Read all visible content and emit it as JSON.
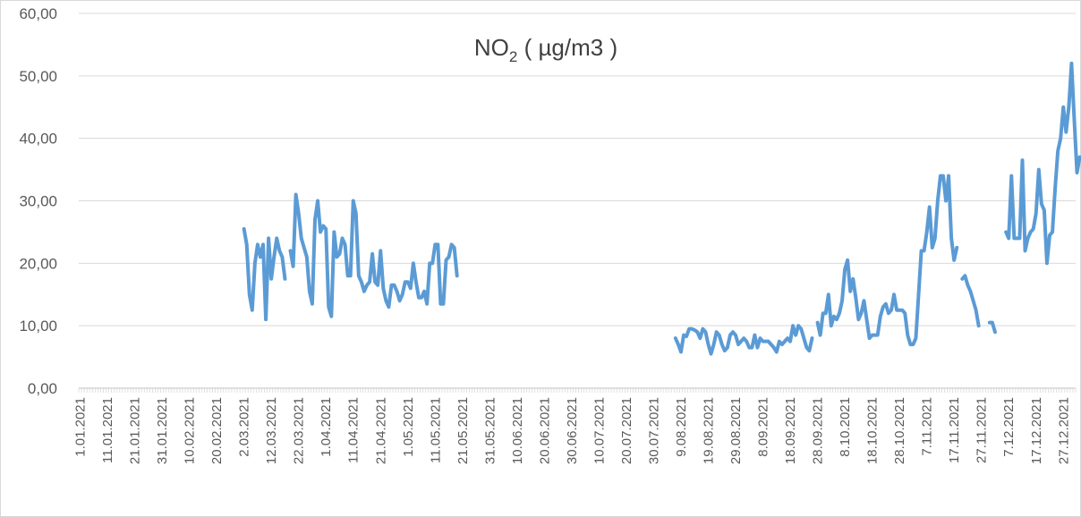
{
  "chart_data": {
    "type": "line",
    "title": "NO",
    "title_subscript": "2",
    "title_suffix": " ( µg/m3 )",
    "xlabel": "",
    "ylabel": "",
    "ylim": [
      0,
      60
    ],
    "y_ticks": [
      "0,00",
      "10,00",
      "20,00",
      "30,00",
      "40,00",
      "50,00",
      "60,00"
    ],
    "x_ticks": [
      "1.01.2021",
      "11.01.2021",
      "21.01.2021",
      "31.01.2021",
      "10.02.2021",
      "20.02.2021",
      "2.03.2021",
      "12.03.2021",
      "22.03.2021",
      "1.04.2021",
      "11.04.2021",
      "21.04.2021",
      "1.05.2021",
      "11.05.2021",
      "21.05.2021",
      "31.05.2021",
      "10.06.2021",
      "20.06.2021",
      "30.06.2021",
      "10.07.2021",
      "20.07.2021",
      "30.07.2021",
      "9.08.2021",
      "19.08.2021",
      "29.08.2021",
      "8.09.2021",
      "18.09.2021",
      "28.09.2021",
      "8.10.2021",
      "18.10.2021",
      "28.10.2021",
      "7.11.2021",
      "17.11.2021",
      "27.11.2021",
      "7.12.2021",
      "17.12.2021",
      "27.12.2021"
    ],
    "grid": true,
    "legend": "none",
    "line_color": "#5b9bd5",
    "series": [
      {
        "segments": [
          [
            [
              61,
              25.5
            ],
            [
              62,
              23
            ],
            [
              63,
              15
            ],
            [
              64,
              12.5
            ],
            [
              65,
              20
            ],
            [
              66,
              23
            ],
            [
              67,
              21
            ],
            [
              68,
              23
            ],
            [
              69,
              11
            ],
            [
              70,
              24
            ],
            [
              71,
              17.5
            ],
            [
              72,
              21
            ],
            [
              73,
              24
            ],
            [
              74,
              22
            ],
            [
              75,
              21
            ],
            [
              76,
              17.5
            ]
          ],
          [
            [
              78,
              22
            ],
            [
              79,
              19.5
            ],
            [
              80,
              31
            ],
            [
              81,
              28
            ],
            [
              82,
              24
            ],
            [
              83,
              22.5
            ],
            [
              84,
              21
            ],
            [
              85,
              15.5
            ],
            [
              86,
              13.5
            ],
            [
              87,
              27
            ],
            [
              88,
              30
            ],
            [
              89,
              25
            ],
            [
              90,
              26
            ],
            [
              91,
              25.5
            ],
            [
              92,
              13
            ],
            [
              93,
              11.5
            ],
            [
              94,
              25
            ],
            [
              95,
              21
            ],
            [
              96,
              21.5
            ],
            [
              97,
              24
            ],
            [
              98,
              23
            ],
            [
              99,
              18
            ],
            [
              100,
              18
            ],
            [
              101,
              30
            ],
            [
              102,
              28
            ],
            [
              103,
              18
            ],
            [
              104,
              17
            ],
            [
              105,
              15.5
            ],
            [
              106,
              16.5
            ],
            [
              107,
              17
            ],
            [
              108,
              21.5
            ],
            [
              109,
              17
            ],
            [
              110,
              16.5
            ],
            [
              111,
              22
            ],
            [
              112,
              16
            ],
            [
              113,
              14
            ],
            [
              114,
              13
            ],
            [
              115,
              16.5
            ],
            [
              116,
              16.5
            ],
            [
              117,
              15.5
            ],
            [
              118,
              14
            ],
            [
              119,
              15
            ],
            [
              120,
              17
            ],
            [
              121,
              17
            ],
            [
              122,
              16
            ],
            [
              123,
              20
            ],
            [
              124,
              17
            ],
            [
              125,
              14.5
            ],
            [
              126,
              14.5
            ],
            [
              127,
              15.5
            ],
            [
              128,
              13.5
            ],
            [
              129,
              20
            ],
            [
              130,
              20
            ],
            [
              131,
              23
            ],
            [
              132,
              23
            ],
            [
              133,
              13.5
            ],
            [
              134,
              13.5
            ],
            [
              135,
              20.5
            ],
            [
              136,
              21
            ],
            [
              137,
              23
            ],
            [
              138,
              22.5
            ],
            [
              139,
              18
            ]
          ],
          [
            [
              219,
              8
            ],
            [
              220,
              7
            ],
            [
              221,
              5.8
            ],
            [
              222,
              8.5
            ],
            [
              223,
              8.3
            ],
            [
              224,
              9.5
            ],
            [
              225,
              9.5
            ],
            [
              226,
              9.3
            ],
            [
              227,
              9
            ],
            [
              228,
              8
            ],
            [
              229,
              9.5
            ],
            [
              230,
              9
            ],
            [
              231,
              7
            ],
            [
              232,
              5.5
            ],
            [
              233,
              7
            ],
            [
              234,
              9
            ],
            [
              235,
              8.5
            ],
            [
              236,
              7
            ],
            [
              237,
              6
            ],
            [
              238,
              6.5
            ],
            [
              239,
              8.5
            ],
            [
              240,
              9
            ],
            [
              241,
              8.5
            ],
            [
              242,
              7
            ],
            [
              243,
              7.5
            ],
            [
              244,
              8
            ],
            [
              245,
              7.5
            ],
            [
              246,
              6.5
            ],
            [
              247,
              6.5
            ],
            [
              248,
              8.5
            ],
            [
              249,
              6.5
            ],
            [
              250,
              8
            ],
            [
              251,
              7.5
            ],
            [
              252,
              7.5
            ],
            [
              253,
              7.5
            ],
            [
              254,
              7
            ],
            [
              255,
              6.5
            ],
            [
              256,
              5.8
            ],
            [
              257,
              7.5
            ],
            [
              258,
              7
            ],
            [
              259,
              7.5
            ],
            [
              260,
              8
            ],
            [
              261,
              7.5
            ],
            [
              262,
              10
            ],
            [
              263,
              8.5
            ],
            [
              264,
              10
            ],
            [
              265,
              9.5
            ],
            [
              266,
              8
            ],
            [
              267,
              6.5
            ],
            [
              268,
              6
            ],
            [
              269,
              8
            ]
          ],
          [
            [
              271,
              10.5
            ],
            [
              272,
              8.5
            ],
            [
              273,
              12
            ],
            [
              274,
              12
            ],
            [
              275,
              15
            ],
            [
              276,
              10
            ],
            [
              277,
              11.5
            ],
            [
              278,
              11
            ],
            [
              279,
              12
            ],
            [
              280,
              14
            ],
            [
              281,
              19
            ],
            [
              282,
              20.5
            ],
            [
              283,
              15.5
            ],
            [
              284,
              17.5
            ],
            [
              285,
              14.5
            ],
            [
              286,
              11
            ],
            [
              287,
              12
            ],
            [
              288,
              14
            ],
            [
              289,
              11
            ],
            [
              290,
              8
            ],
            [
              291,
              8.5
            ],
            [
              292,
              8.5
            ],
            [
              293,
              8.5
            ],
            [
              294,
              11.5
            ],
            [
              295,
              13
            ],
            [
              296,
              13.5
            ],
            [
              297,
              12
            ],
            [
              298,
              12.5
            ],
            [
              299,
              15
            ],
            [
              300,
              12.5
            ],
            [
              301,
              12.5
            ],
            [
              302,
              12.5
            ],
            [
              303,
              12
            ],
            [
              304,
              8.5
            ],
            [
              305,
              7
            ],
            [
              306,
              7
            ],
            [
              307,
              8
            ],
            [
              308,
              15
            ],
            [
              309,
              22
            ],
            [
              310,
              22
            ],
            [
              311,
              25
            ],
            [
              312,
              29
            ],
            [
              313,
              22.5
            ],
            [
              314,
              24
            ],
            [
              315,
              30
            ],
            [
              316,
              34
            ],
            [
              317,
              34
            ],
            [
              318,
              30
            ],
            [
              319,
              34
            ],
            [
              320,
              24
            ],
            [
              321,
              20.5
            ],
            [
              322,
              22.5
            ]
          ],
          [
            [
              324,
              17.5
            ],
            [
              325,
              18
            ],
            [
              326,
              16.5
            ],
            [
              327,
              15.5
            ],
            [
              328,
              14
            ],
            [
              329,
              12.5
            ],
            [
              330,
              10
            ]
          ],
          [
            [
              334,
              10.5
            ],
            [
              335,
              10.5
            ],
            [
              336,
              9
            ]
          ],
          [
            [
              340,
              25
            ],
            [
              341,
              24
            ],
            [
              342,
              34
            ],
            [
              343,
              24
            ],
            [
              344,
              24
            ],
            [
              345,
              24
            ],
            [
              346,
              36.5
            ],
            [
              347,
              22
            ],
            [
              348,
              24
            ],
            [
              349,
              25
            ],
            [
              350,
              25.5
            ],
            [
              351,
              28
            ],
            [
              352,
              35
            ],
            [
              353,
              29.5
            ],
            [
              354,
              28.5
            ],
            [
              355,
              20
            ],
            [
              356,
              24.5
            ],
            [
              357,
              25
            ],
            [
              358,
              32
            ],
            [
              359,
              38
            ],
            [
              360,
              40
            ],
            [
              361,
              45
            ],
            [
              362,
              41
            ],
            [
              363,
              45
            ],
            [
              364,
              52
            ],
            [
              365,
              43
            ],
            [
              366,
              34.5
            ],
            [
              367,
              37
            ]
          ]
        ]
      }
    ]
  }
}
